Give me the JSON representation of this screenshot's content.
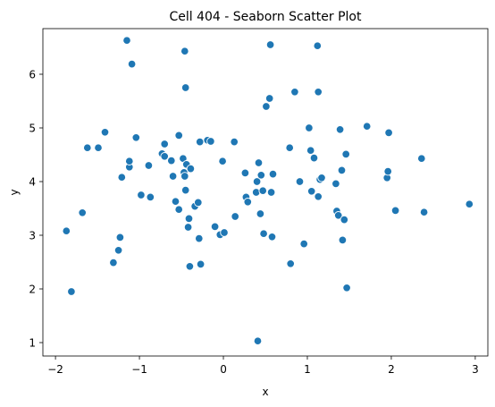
{
  "chart_data": {
    "type": "scatter",
    "title": "Cell 404 - Seaborn Scatter Plot",
    "xlabel": "x",
    "ylabel": "y",
    "xlim": [
      -2.15,
      3.15
    ],
    "ylim": [
      0.75,
      6.85
    ],
    "xticks": [
      -2,
      -1,
      0,
      1,
      2,
      3
    ],
    "yticks": [
      1,
      2,
      3,
      4,
      5,
      6
    ],
    "grid": false,
    "point_color": "#1f77b4",
    "points": [
      {
        "x": -1.87,
        "y": 3.08
      },
      {
        "x": -1.81,
        "y": 1.95
      },
      {
        "x": -1.68,
        "y": 3.42
      },
      {
        "x": -1.62,
        "y": 4.63
      },
      {
        "x": -1.49,
        "y": 4.63
      },
      {
        "x": -1.41,
        "y": 4.92
      },
      {
        "x": -1.31,
        "y": 2.49
      },
      {
        "x": -1.25,
        "y": 2.72
      },
      {
        "x": -1.23,
        "y": 2.96
      },
      {
        "x": -1.21,
        "y": 4.08
      },
      {
        "x": -1.15,
        "y": 6.63
      },
      {
        "x": -1.12,
        "y": 4.27
      },
      {
        "x": -1.12,
        "y": 4.38
      },
      {
        "x": -1.09,
        "y": 6.19
      },
      {
        "x": -1.04,
        "y": 4.82
      },
      {
        "x": -0.98,
        "y": 3.75
      },
      {
        "x": -0.89,
        "y": 4.3
      },
      {
        "x": -0.87,
        "y": 3.71
      },
      {
        "x": -0.73,
        "y": 4.52
      },
      {
        "x": -0.7,
        "y": 4.7
      },
      {
        "x": -0.7,
        "y": 4.47
      },
      {
        "x": -0.62,
        "y": 4.39
      },
      {
        "x": -0.6,
        "y": 4.1
      },
      {
        "x": -0.57,
        "y": 3.63
      },
      {
        "x": -0.53,
        "y": 4.86
      },
      {
        "x": -0.53,
        "y": 3.48
      },
      {
        "x": -0.48,
        "y": 4.43
      },
      {
        "x": -0.47,
        "y": 4.17
      },
      {
        "x": -0.46,
        "y": 4.1
      },
      {
        "x": -0.46,
        "y": 6.43
      },
      {
        "x": -0.45,
        "y": 5.75
      },
      {
        "x": -0.45,
        "y": 3.84
      },
      {
        "x": -0.44,
        "y": 4.32
      },
      {
        "x": -0.42,
        "y": 3.15
      },
      {
        "x": -0.41,
        "y": 3.31
      },
      {
        "x": -0.4,
        "y": 2.42
      },
      {
        "x": -0.39,
        "y": 4.24
      },
      {
        "x": -0.34,
        "y": 3.54
      },
      {
        "x": -0.3,
        "y": 3.61
      },
      {
        "x": -0.29,
        "y": 2.94
      },
      {
        "x": -0.28,
        "y": 4.74
      },
      {
        "x": -0.27,
        "y": 2.46
      },
      {
        "x": -0.19,
        "y": 4.77
      },
      {
        "x": -0.15,
        "y": 4.75
      },
      {
        "x": -0.1,
        "y": 3.16
      },
      {
        "x": -0.04,
        "y": 3.01
      },
      {
        "x": -0.01,
        "y": 4.38
      },
      {
        "x": 0.01,
        "y": 3.05
      },
      {
        "x": 0.13,
        "y": 4.74
      },
      {
        "x": 0.14,
        "y": 3.35
      },
      {
        "x": 0.26,
        "y": 4.16
      },
      {
        "x": 0.27,
        "y": 3.71
      },
      {
        "x": 0.29,
        "y": 3.62
      },
      {
        "x": 0.39,
        "y": 3.8
      },
      {
        "x": 0.4,
        "y": 4.0
      },
      {
        "x": 0.41,
        "y": 1.03
      },
      {
        "x": 0.42,
        "y": 4.35
      },
      {
        "x": 0.44,
        "y": 3.4
      },
      {
        "x": 0.45,
        "y": 4.12
      },
      {
        "x": 0.47,
        "y": 3.83
      },
      {
        "x": 0.48,
        "y": 3.03
      },
      {
        "x": 0.51,
        "y": 5.4
      },
      {
        "x": 0.55,
        "y": 5.55
      },
      {
        "x": 0.56,
        "y": 6.55
      },
      {
        "x": 0.57,
        "y": 3.8
      },
      {
        "x": 0.58,
        "y": 2.97
      },
      {
        "x": 0.59,
        "y": 4.14
      },
      {
        "x": 0.79,
        "y": 4.63
      },
      {
        "x": 0.8,
        "y": 2.47
      },
      {
        "x": 0.85,
        "y": 5.67
      },
      {
        "x": 0.91,
        "y": 4.0
      },
      {
        "x": 0.96,
        "y": 2.84
      },
      {
        "x": 1.02,
        "y": 5.0
      },
      {
        "x": 1.04,
        "y": 4.58
      },
      {
        "x": 1.05,
        "y": 3.82
      },
      {
        "x": 1.08,
        "y": 4.44
      },
      {
        "x": 1.12,
        "y": 6.53
      },
      {
        "x": 1.13,
        "y": 5.67
      },
      {
        "x": 1.13,
        "y": 3.72
      },
      {
        "x": 1.15,
        "y": 4.04
      },
      {
        "x": 1.17,
        "y": 4.07
      },
      {
        "x": 1.34,
        "y": 3.96
      },
      {
        "x": 1.35,
        "y": 3.45
      },
      {
        "x": 1.37,
        "y": 3.37
      },
      {
        "x": 1.39,
        "y": 4.97
      },
      {
        "x": 1.41,
        "y": 4.21
      },
      {
        "x": 1.42,
        "y": 2.91
      },
      {
        "x": 1.44,
        "y": 3.29
      },
      {
        "x": 1.46,
        "y": 4.51
      },
      {
        "x": 1.47,
        "y": 2.02
      },
      {
        "x": 1.71,
        "y": 5.03
      },
      {
        "x": 1.95,
        "y": 4.07
      },
      {
        "x": 1.96,
        "y": 4.19
      },
      {
        "x": 1.97,
        "y": 4.91
      },
      {
        "x": 2.05,
        "y": 3.46
      },
      {
        "x": 2.36,
        "y": 4.43
      },
      {
        "x": 2.39,
        "y": 3.43
      },
      {
        "x": 2.93,
        "y": 3.58
      }
    ]
  }
}
